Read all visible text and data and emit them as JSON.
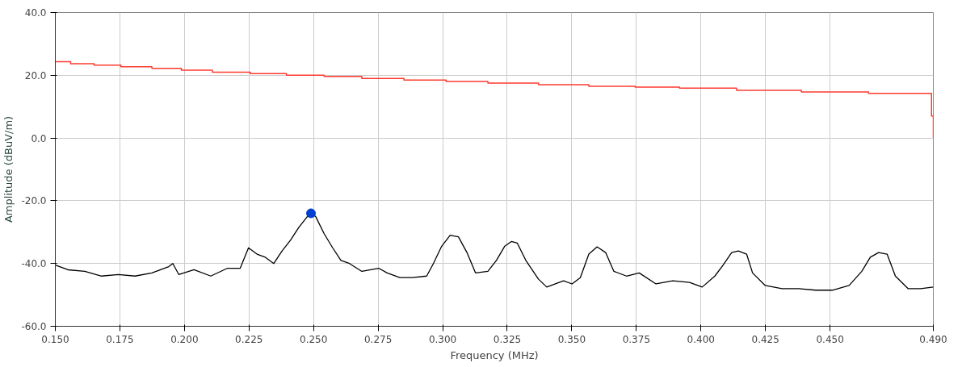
{
  "chart_data": {
    "type": "line",
    "xlabel": "Frequency (MHz)",
    "ylabel": "Amplitude (dBuV/m)",
    "xlim": [
      0.15,
      0.49
    ],
    "ylim": [
      -60,
      40
    ],
    "xticks": [
      {
        "value": 0.15,
        "label": "0.150"
      },
      {
        "value": 0.175,
        "label": "0.175"
      },
      {
        "value": 0.2,
        "label": "0.200"
      },
      {
        "value": 0.225,
        "label": "0.225"
      },
      {
        "value": 0.25,
        "label": "0.250"
      },
      {
        "value": 0.275,
        "label": "0.275"
      },
      {
        "value": 0.3,
        "label": "0.300"
      },
      {
        "value": 0.325,
        "label": "0.325"
      },
      {
        "value": 0.35,
        "label": "0.350"
      },
      {
        "value": 0.375,
        "label": "0.375"
      },
      {
        "value": 0.4,
        "label": "0.400"
      },
      {
        "value": 0.425,
        "label": "0.425"
      },
      {
        "value": 0.45,
        "label": "0.450"
      },
      {
        "value": 0.49,
        "label": "0.490"
      }
    ],
    "yticks": [
      {
        "value": -60,
        "label": "-60.0"
      },
      {
        "value": -40,
        "label": "-40.0"
      },
      {
        "value": -20,
        "label": "-20.0"
      },
      {
        "value": 0,
        "label": "0.0"
      },
      {
        "value": 20,
        "label": "20.0"
      },
      {
        "value": 40,
        "label": "40.0"
      }
    ],
    "grid": true,
    "line_style": "solid",
    "marker": "none",
    "series": [
      {
        "type": "step",
        "color": "#ff3b2f",
        "x": [
          0.15,
          0.1559,
          0.165,
          0.1754,
          0.1874,
          0.1988,
          0.2108,
          0.2255,
          0.2395,
          0.2541,
          0.2687,
          0.285,
          0.3013,
          0.3175,
          0.3371,
          0.3566,
          0.3745,
          0.3917,
          0.4138,
          0.4389,
          0.4649,
          0.4893,
          0.49
        ],
        "values": [
          24.3,
          23.7,
          23.2,
          22.7,
          22.2,
          21.6,
          21.0,
          20.5,
          20.0,
          19.6,
          19.0,
          18.5,
          18.0,
          17.5,
          17.0,
          16.5,
          16.2,
          15.9,
          15.2,
          14.7,
          14.2,
          7.0,
          0
        ]
      },
      {
        "color": "#000000",
        "x": [
          0.15,
          0.1549,
          0.1614,
          0.1679,
          0.1744,
          0.1809,
          0.1874,
          0.1939,
          0.1955,
          0.1978,
          0.2037,
          0.2102,
          0.2167,
          0.2216,
          0.2248,
          0.2281,
          0.2313,
          0.2346,
          0.2378,
          0.2411,
          0.2443,
          0.2486,
          0.2508,
          0.2541,
          0.2574,
          0.2606,
          0.2639,
          0.2687,
          0.2752,
          0.2785,
          0.2834,
          0.2883,
          0.2938,
          0.2964,
          0.2996,
          0.3029,
          0.3061,
          0.3094,
          0.3127,
          0.3175,
          0.3208,
          0.324,
          0.3266,
          0.3289,
          0.3322,
          0.3371,
          0.3403,
          0.3468,
          0.3501,
          0.3533,
          0.3566,
          0.3598,
          0.3631,
          0.3663,
          0.3712,
          0.3761,
          0.3826,
          0.3891,
          0.3956,
          0.4005,
          0.4054,
          0.4086,
          0.4119,
          0.4145,
          0.4177,
          0.42,
          0.4249,
          0.4314,
          0.4379,
          0.4444,
          0.4509,
          0.4574,
          0.4623,
          0.4656,
          0.4688,
          0.4721,
          0.4753,
          0.4802,
          0.4851,
          0.49
        ],
        "values": [
          -40.5,
          -42,
          -42.5,
          -44,
          -43.5,
          -44,
          -43,
          -41,
          -40,
          -43.5,
          -42,
          -44,
          -41.5,
          -41.5,
          -35,
          -37,
          -38,
          -40,
          -36,
          -32.5,
          -28.5,
          -24,
          -25,
          -30.5,
          -35,
          -39,
          -40,
          -42.5,
          -41.5,
          -43,
          -44.5,
          -44.5,
          -44,
          -40,
          -34.5,
          -31,
          -31.5,
          -36.5,
          -43,
          -42.5,
          -39,
          -34.5,
          -33,
          -33.5,
          -39,
          -45,
          -47.5,
          -45.5,
          -46.5,
          -44.5,
          -37,
          -34.7,
          -36.5,
          -42.5,
          -44,
          -43,
          -46.5,
          -45.5,
          -46,
          -47.5,
          -44,
          -40.5,
          -36.5,
          -36,
          -37,
          -43,
          -47,
          -48,
          -48,
          -48.5,
          -48.5,
          -47,
          -42.5,
          -38,
          -36.5,
          -37,
          -44,
          -48,
          -48,
          -47.5
        ]
      },
      {
        "type": "scatter",
        "color": "#0040d0",
        "marker": "circle",
        "x": [
          0.249
        ],
        "values": [
          -24
        ]
      }
    ]
  }
}
